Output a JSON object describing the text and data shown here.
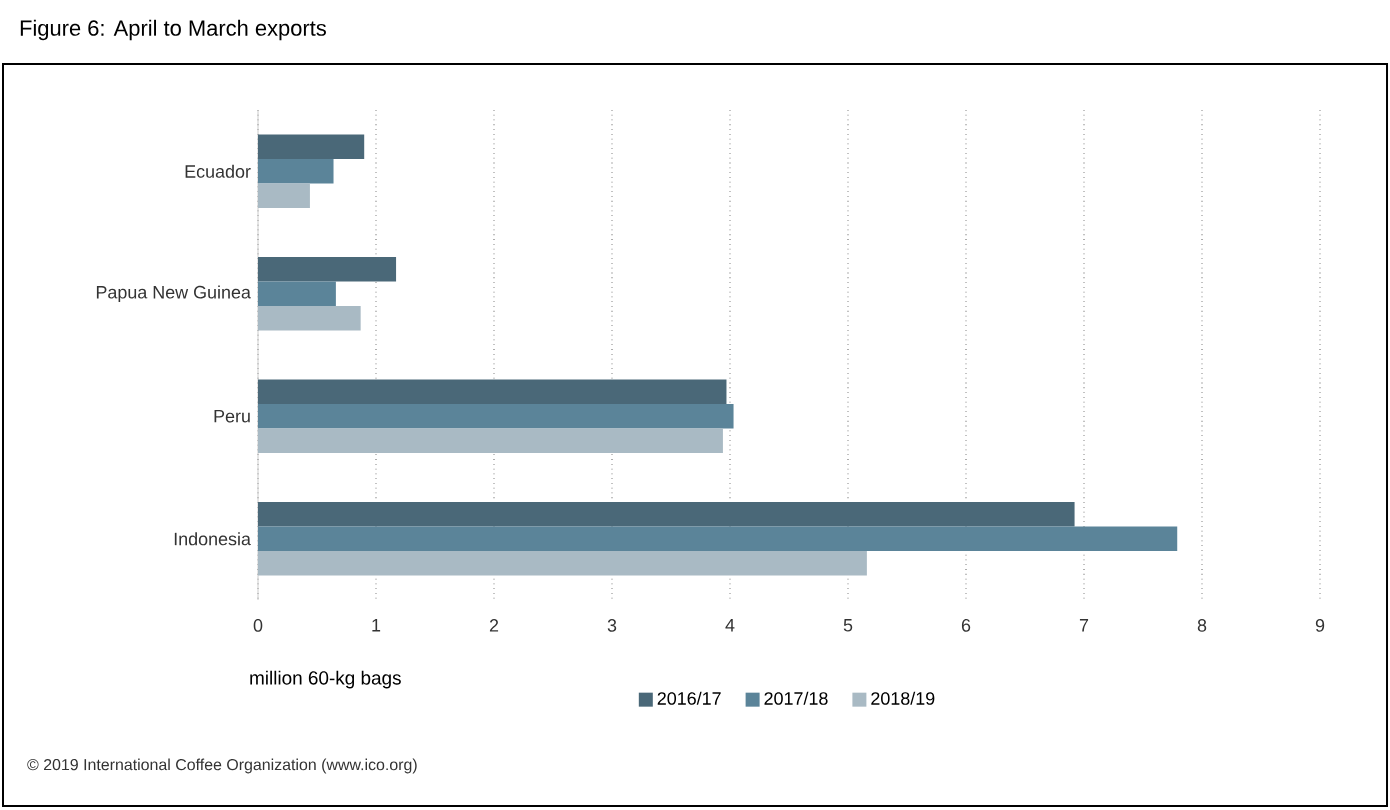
{
  "chart_data": {
    "type": "bar",
    "orientation": "horizontal",
    "title": "Figure 6: April to March exports",
    "xlabel": "million 60-kg bags",
    "categories": [
      "Ecuador",
      "Papua New Guinea",
      "Peru",
      "Indonesia"
    ],
    "series": [
      {
        "name": "2016/17",
        "color": "#4a6878",
        "values": [
          0.9,
          1.17,
          3.97,
          6.92
        ]
      },
      {
        "name": "2017/18",
        "color": "#5b8499",
        "values": [
          0.64,
          0.66,
          4.03,
          7.79
        ]
      },
      {
        "name": "2018/19",
        "color": "#a9bac4",
        "values": [
          0.44,
          0.87,
          3.94,
          5.16
        ]
      }
    ],
    "xlim": [
      0,
      9
    ],
    "xticks": [
      0,
      1,
      2,
      3,
      4,
      5,
      6,
      7,
      8,
      9
    ],
    "grid": "x",
    "legend": "bottom",
    "annotations": [
      "© 2019 International Coffee Organization (www.ico.org)"
    ]
  }
}
